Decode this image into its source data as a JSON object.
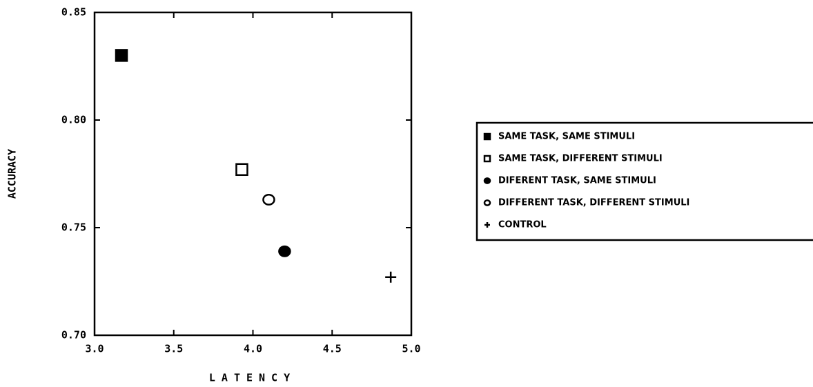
{
  "chart_data": {
    "type": "scatter",
    "xlabel": "LATENCY",
    "ylabel": "ACCURACY",
    "xlim": [
      3.0,
      5.0
    ],
    "ylim": [
      0.7,
      0.85
    ],
    "xticks": [
      {
        "value": 3.0,
        "label": "3.0"
      },
      3.5,
      {
        "value": 4.0,
        "label": "4.0"
      },
      4.5,
      {
        "value": 5.0,
        "label": "5.0"
      }
    ],
    "yticks": [
      {
        "value": 0.7,
        "label": "0.70"
      },
      0.75,
      {
        "value": 0.8,
        "label": "0.80"
      },
      0.85
    ],
    "legend": "right",
    "series": [
      {
        "name": "SAME TASK, SAME STIMULI",
        "marker": "filled-square",
        "color": "#000000",
        "x": [
          3.17
        ],
        "values": [
          0.83
        ]
      },
      {
        "name": "SAME TASK, DIFFERENT STIMULI",
        "marker": "open-square",
        "color": "#000000",
        "x": [
          3.93
        ],
        "values": [
          0.777
        ]
      },
      {
        "name": "DIFERENT TASK, SAME STIMULI",
        "marker": "filled-circle",
        "color": "#000000",
        "x": [
          4.2
        ],
        "values": [
          0.739
        ]
      },
      {
        "name": "DIFFERENT TASK, DIFFERENT STIMULI",
        "marker": "open-circle",
        "color": "#000000",
        "x": [
          4.1
        ],
        "values": [
          0.763
        ]
      },
      {
        "name": "CONTROL",
        "marker": "plus",
        "color": "#000000",
        "x": [
          4.87
        ],
        "values": [
          0.727
        ]
      }
    ]
  }
}
